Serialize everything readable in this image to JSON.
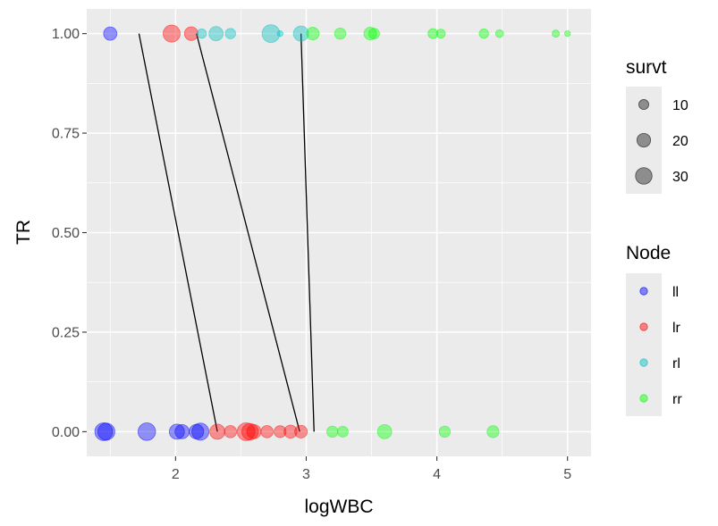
{
  "chart_data": {
    "type": "scatter",
    "xlabel": "logWBC",
    "ylabel": "TR",
    "xlim": [
      1.32,
      5.18
    ],
    "ylim": [
      -0.062,
      1.062
    ],
    "x_ticks": [
      2,
      3,
      4,
      5
    ],
    "x_tick_labels": [
      "2",
      "3",
      "4",
      "5"
    ],
    "y_ticks": [
      0,
      0.25,
      0.5,
      0.75,
      1
    ],
    "y_tick_labels": [
      "0.00",
      "0.25",
      "0.50",
      "0.75",
      "1.00"
    ],
    "grid": true,
    "colors": {
      "ll": "#0000ff",
      "lr": "#ff0000",
      "rl": "#00bfbf",
      "rr": "#00ff00"
    },
    "legend_size": {
      "title": "survt",
      "entries": [
        {
          "label": "10",
          "value": 10
        },
        {
          "label": "20",
          "value": 20
        },
        {
          "label": "30",
          "value": 30
        }
      ]
    },
    "legend_node": {
      "title": "Node",
      "entries": [
        "ll",
        "lr",
        "rl",
        "rr"
      ]
    },
    "points": [
      {
        "x": 1.5,
        "y": 1,
        "node": "ll",
        "survt": 19
      },
      {
        "x": 1.97,
        "y": 1,
        "node": "lr",
        "survt": 32
      },
      {
        "x": 2.12,
        "y": 1,
        "node": "lr",
        "survt": 20
      },
      {
        "x": 2.2,
        "y": 1,
        "node": "rl",
        "survt": 9
      },
      {
        "x": 2.31,
        "y": 1,
        "node": "rl",
        "survt": 22
      },
      {
        "x": 2.42,
        "y": 1,
        "node": "rl",
        "survt": 11
      },
      {
        "x": 2.73,
        "y": 1,
        "node": "rl",
        "survt": 35
      },
      {
        "x": 2.8,
        "y": 1,
        "node": "rl",
        "survt": 3
      },
      {
        "x": 2.96,
        "y": 1,
        "node": "rl",
        "survt": 25
      },
      {
        "x": 3.05,
        "y": 1,
        "node": "rr",
        "survt": 17
      },
      {
        "x": 3.26,
        "y": 1,
        "node": "rr",
        "survt": 13
      },
      {
        "x": 3.49,
        "y": 1,
        "node": "rr",
        "survt": 17
      },
      {
        "x": 3.52,
        "y": 1,
        "node": "rr",
        "survt": 12
      },
      {
        "x": 3.97,
        "y": 1,
        "node": "rr",
        "survt": 10
      },
      {
        "x": 4.03,
        "y": 1,
        "node": "rr",
        "survt": 8
      },
      {
        "x": 4.36,
        "y": 1,
        "node": "rr",
        "survt": 9
      },
      {
        "x": 4.48,
        "y": 1,
        "node": "rr",
        "survt": 6
      },
      {
        "x": 4.91,
        "y": 1,
        "node": "rr",
        "survt": 5
      },
      {
        "x": 5.0,
        "y": 1,
        "node": "rr",
        "survt": 3
      },
      {
        "x": 1.45,
        "y": 0,
        "node": "ll",
        "survt": 35
      },
      {
        "x": 1.47,
        "y": 0,
        "node": "ll",
        "survt": 32
      },
      {
        "x": 1.78,
        "y": 0,
        "node": "ll",
        "survt": 34
      },
      {
        "x": 2.01,
        "y": 0,
        "node": "ll",
        "survt": 25
      },
      {
        "x": 2.05,
        "y": 0,
        "node": "ll",
        "survt": 22
      },
      {
        "x": 2.16,
        "y": 0,
        "node": "ll",
        "survt": 23
      },
      {
        "x": 2.19,
        "y": 0,
        "node": "ll",
        "survt": 32
      },
      {
        "x": 2.32,
        "y": 0,
        "node": "lr",
        "survt": 25
      },
      {
        "x": 2.42,
        "y": 0,
        "node": "lr",
        "survt": 16
      },
      {
        "x": 2.54,
        "y": 0,
        "node": "lr",
        "survt": 35
      },
      {
        "x": 2.57,
        "y": 0,
        "node": "lr",
        "survt": 30
      },
      {
        "x": 2.6,
        "y": 0,
        "node": "lr",
        "survt": 22
      },
      {
        "x": 2.7,
        "y": 0,
        "node": "lr",
        "survt": 16
      },
      {
        "x": 2.8,
        "y": 0,
        "node": "lr",
        "survt": 15
      },
      {
        "x": 2.88,
        "y": 0,
        "node": "lr",
        "survt": 18
      },
      {
        "x": 2.96,
        "y": 0,
        "node": "lr",
        "survt": 17
      },
      {
        "x": 3.2,
        "y": 0,
        "node": "rr",
        "survt": 13
      },
      {
        "x": 3.28,
        "y": 0,
        "node": "rr",
        "survt": 12
      },
      {
        "x": 3.6,
        "y": 0,
        "node": "rr",
        "survt": 22
      },
      {
        "x": 4.06,
        "y": 0,
        "node": "rr",
        "survt": 13
      },
      {
        "x": 4.43,
        "y": 0,
        "node": "rr",
        "survt": 15
      }
    ],
    "segments": [
      {
        "x1": 1.72,
        "y1": 1,
        "x2": 2.32,
        "y2": 0
      },
      {
        "x1": 2.16,
        "y1": 1,
        "x2": 2.95,
        "y2": 0
      },
      {
        "x1": 2.96,
        "y1": 1,
        "x2": 3.06,
        "y2": 0
      }
    ]
  }
}
